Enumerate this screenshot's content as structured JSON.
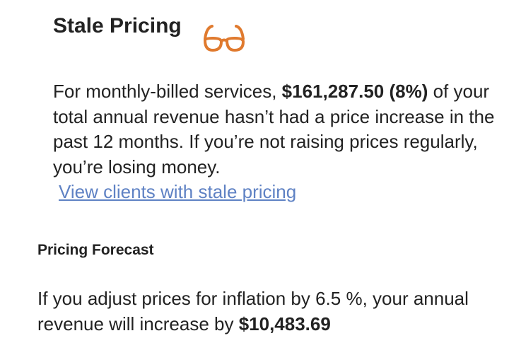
{
  "header": {
    "title": "Stale Pricing"
  },
  "stale": {
    "text_before": "For monthly-billed services, ",
    "amount": "$161,287.50 (8%)",
    "text_after": " of your total annual revenue hasn’t had a price increase in the past 12 months. If you’re not raising prices regularly, you’re losing money.",
    "link": "View clients with stale pricing"
  },
  "forecast": {
    "title": "Pricing Forecast",
    "text": "If you adjust prices for inflation by 6.5 %, your annual revenue will increase by ",
    "amount": "$10,483.69"
  }
}
